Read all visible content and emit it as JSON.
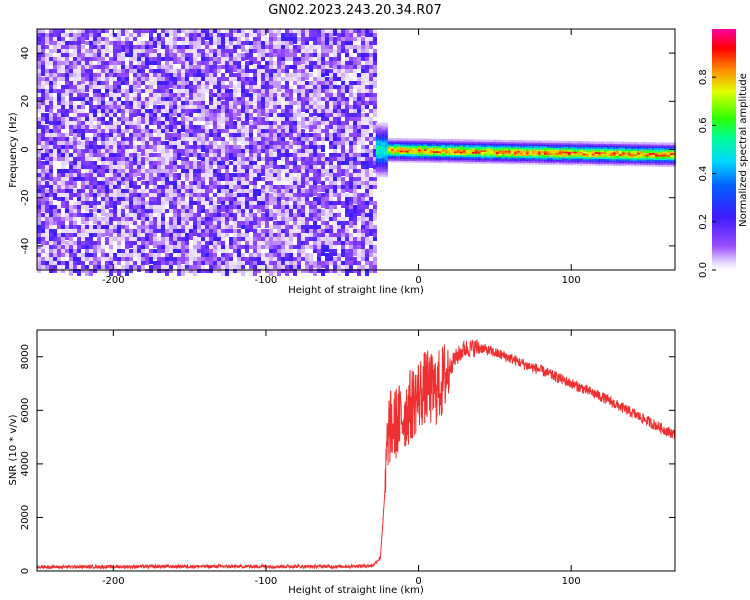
{
  "title": "GN02.2023.243.20.34.R07",
  "chart_data": [
    {
      "type": "heatmap",
      "xlabel": "Height of straight line (km)",
      "ylabel": "Frequency (Hz)",
      "xlim": [
        -250,
        168
      ],
      "ylim": [
        -50,
        50
      ],
      "xticks": [
        -200,
        -100,
        0,
        100
      ],
      "yticks": [
        -40,
        -20,
        0,
        20,
        40
      ],
      "colorbar": {
        "label": "Normalized spectral amplitude",
        "range": [
          0,
          1
        ],
        "ticks": [
          "0.0",
          "0.2",
          "0.4",
          "0.6",
          "0.8"
        ],
        "colormap": "rainbow (white → purple → blue → cyan → green → yellow → red → magenta)"
      },
      "regions": [
        {
          "x_range": [
            -250,
            -28
          ],
          "frequency_range": [
            -50,
            50
          ],
          "amplitude": "low (0.1–0.4), noisy"
        },
        {
          "x_range": [
            -28,
            168
          ],
          "frequency_center": 0,
          "frequency_halfwidth": 4,
          "peak_amplitude": 0.95,
          "drift_at_xmax": -2
        }
      ]
    },
    {
      "type": "line",
      "xlabel": "Height of straight line (km)",
      "ylabel": "SNR (10 * v/v)",
      "xlim": [
        -250,
        168
      ],
      "ylim": [
        0,
        9000
      ],
      "xticks": [
        -200,
        -100,
        0,
        100
      ],
      "yticks": [
        0,
        2000,
        4000,
        6000,
        8000
      ],
      "color": "#ef3030",
      "series": [
        {
          "x": [
            -250,
            -150,
            -50,
            -30,
            -25,
            -22,
            -20,
            -18,
            -15,
            -10,
            -5,
            0,
            5,
            10,
            15,
            20,
            25,
            30,
            40,
            50,
            60,
            70,
            80,
            90,
            100,
            110,
            120,
            130,
            140,
            150,
            160,
            168
          ],
          "y": [
            150,
            170,
            170,
            200,
            500,
            3000,
            5200,
            5400,
            5500,
            5800,
            6200,
            6600,
            6900,
            6700,
            7000,
            7600,
            8000,
            8300,
            8350,
            8150,
            7950,
            7700,
            7500,
            7250,
            7000,
            6750,
            6500,
            6200,
            5900,
            5600,
            5300,
            5100
          ]
        }
      ]
    }
  ]
}
